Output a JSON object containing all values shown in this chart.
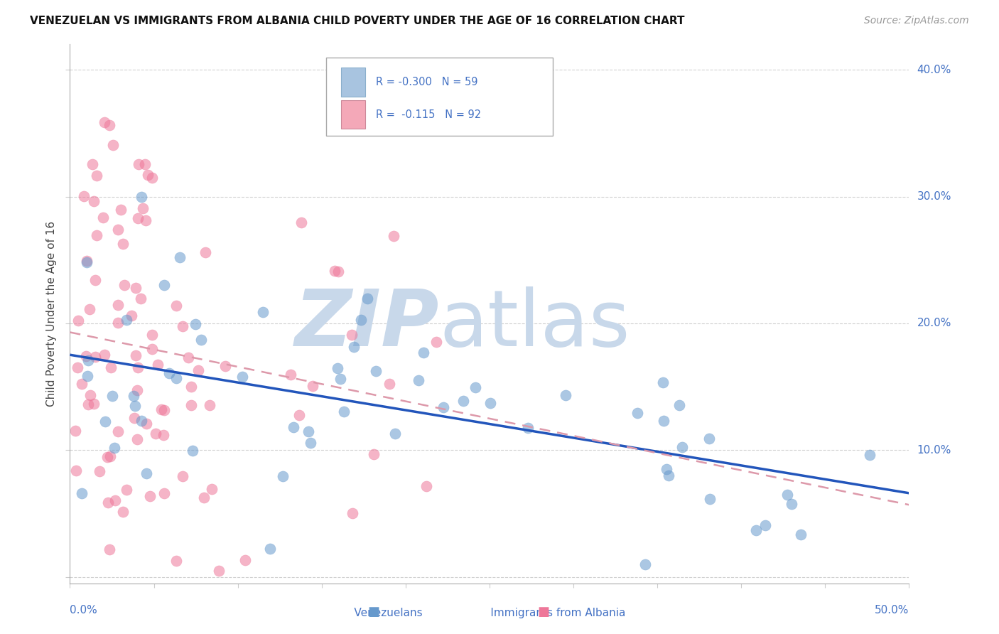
{
  "title": "VENEZUELAN VS IMMIGRANTS FROM ALBANIA CHILD POVERTY UNDER THE AGE OF 16 CORRELATION CHART",
  "source": "Source: ZipAtlas.com",
  "ylabel": "Child Poverty Under the Age of 16",
  "xlim": [
    0.0,
    0.5
  ],
  "ylim": [
    -0.005,
    0.42
  ],
  "venezuelan_scatter_color": "#6699cc",
  "albania_scatter_color": "#ee7799",
  "trend_venezuelan_color": "#2255bb",
  "trend_albania_color": "#dd8899",
  "watermark_zip_color": "#c8d8ea",
  "watermark_atlas_color": "#c8d8ea",
  "background_color": "#ffffff",
  "grid_color": "#cccccc",
  "label_color": "#4472c4",
  "title_color": "#111111",
  "source_color": "#999999",
  "legend_box_color": "#a8c4e0",
  "legend_pink_color": "#f4a8b8"
}
